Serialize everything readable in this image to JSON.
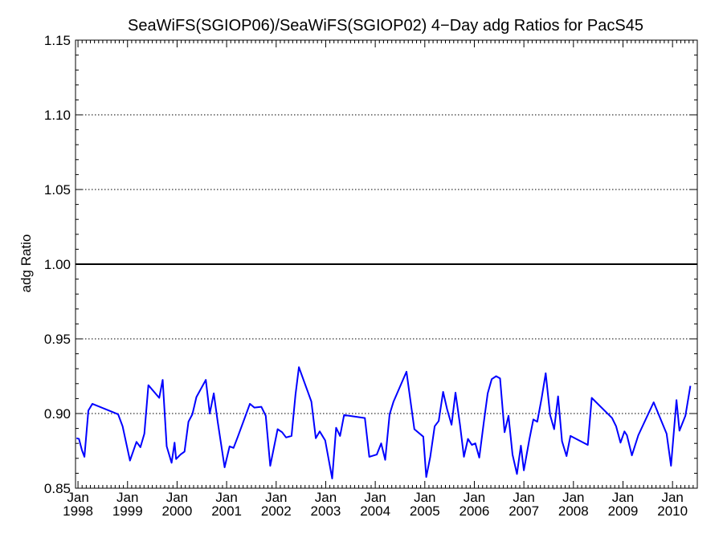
{
  "chart_data": {
    "type": "line",
    "title": "SeaWiFS(SGIOP06)/SeaWiFS(SGIOP02) 4−Day adg Ratios for PacS45",
    "xlabel": "",
    "ylabel": "adg Ratio",
    "ylim": [
      0.85,
      1.15
    ],
    "xlim": [
      1997.95,
      2010.5
    ],
    "y_ticks": [
      {
        "value": 0.85,
        "label": "0.85"
      },
      {
        "value": 0.9,
        "label": "0.90"
      },
      {
        "value": 0.95,
        "label": "0.95"
      },
      {
        "value": 1.0,
        "label": "1.00"
      },
      {
        "value": 1.05,
        "label": "1.05"
      },
      {
        "value": 1.1,
        "label": "1.10"
      },
      {
        "value": 1.15,
        "label": "1.15"
      }
    ],
    "x_ticks": [
      {
        "value": 1998,
        "month": "Jan",
        "year": "1998"
      },
      {
        "value": 1999,
        "month": "Jan",
        "year": "1999"
      },
      {
        "value": 2000,
        "month": "Jan",
        "year": "2000"
      },
      {
        "value": 2001,
        "month": "Jan",
        "year": "2001"
      },
      {
        "value": 2002,
        "month": "Jan",
        "year": "2002"
      },
      {
        "value": 2003,
        "month": "Jan",
        "year": "2003"
      },
      {
        "value": 2004,
        "month": "Jan",
        "year": "2004"
      },
      {
        "value": 2005,
        "month": "Jan",
        "year": "2005"
      },
      {
        "value": 2006,
        "month": "Jan",
        "year": "2006"
      },
      {
        "value": 2007,
        "month": "Jan",
        "year": "2007"
      },
      {
        "value": 2008,
        "month": "Jan",
        "year": "2008"
      },
      {
        "value": 2009,
        "month": "Jan",
        "year": "2009"
      },
      {
        "value": 2010,
        "month": "Jan",
        "year": "2010"
      }
    ],
    "grid": "horizontal dotted at major y ticks",
    "reference_line": 1.0,
    "series": [
      {
        "color": "#0000ff",
        "points": [
          [
            1997.97,
            0.8835
          ],
          [
            1998.02,
            0.883
          ],
          [
            1998.08,
            0.8755
          ],
          [
            1998.13,
            0.871
          ],
          [
            1998.21,
            0.902
          ],
          [
            1998.29,
            0.9065
          ],
          [
            1998.81,
            0.8995
          ],
          [
            1998.9,
            0.8915
          ],
          [
            1999.05,
            0.8685
          ],
          [
            1999.18,
            0.881
          ],
          [
            1999.26,
            0.8775
          ],
          [
            1999.34,
            0.8865
          ],
          [
            1999.42,
            0.919
          ],
          [
            1999.64,
            0.9105
          ],
          [
            1999.71,
            0.9225
          ],
          [
            1999.79,
            0.878
          ],
          [
            1999.89,
            0.867
          ],
          [
            1999.95,
            0.8805
          ],
          [
            1999.98,
            0.8695
          ],
          [
            2000.07,
            0.8725
          ],
          [
            2000.15,
            0.8745
          ],
          [
            2000.23,
            0.8945
          ],
          [
            2000.31,
            0.8995
          ],
          [
            2000.39,
            0.911
          ],
          [
            2000.58,
            0.9225
          ],
          [
            2000.66,
            0.9
          ],
          [
            2000.74,
            0.9135
          ],
          [
            2000.82,
            0.8945
          ],
          [
            2000.96,
            0.864
          ],
          [
            2001.06,
            0.878
          ],
          [
            2001.14,
            0.877
          ],
          [
            2001.22,
            0.884
          ],
          [
            2001.47,
            0.9065
          ],
          [
            2001.56,
            0.904
          ],
          [
            2001.7,
            0.9045
          ],
          [
            2001.79,
            0.8985
          ],
          [
            2001.88,
            0.865
          ],
          [
            2002.03,
            0.8895
          ],
          [
            2002.12,
            0.8875
          ],
          [
            2002.2,
            0.884
          ],
          [
            2002.31,
            0.885
          ],
          [
            2002.39,
            0.9125
          ],
          [
            2002.46,
            0.931
          ],
          [
            2002.71,
            0.908
          ],
          [
            2002.8,
            0.8835
          ],
          [
            2002.88,
            0.888
          ],
          [
            2002.99,
            0.882
          ],
          [
            2003.13,
            0.8565
          ],
          [
            2003.21,
            0.8905
          ],
          [
            2003.29,
            0.885
          ],
          [
            2003.37,
            0.899
          ],
          [
            2003.79,
            0.897
          ],
          [
            2003.88,
            0.871
          ],
          [
            2004.03,
            0.8725
          ],
          [
            2004.12,
            0.88
          ],
          [
            2004.2,
            0.869
          ],
          [
            2004.29,
            0.8995
          ],
          [
            2004.37,
            0.908
          ],
          [
            2004.63,
            0.928
          ],
          [
            2004.79,
            0.8895
          ],
          [
            2004.97,
            0.8845
          ],
          [
            2005.03,
            0.8575
          ],
          [
            2005.11,
            0.871
          ],
          [
            2005.2,
            0.8915
          ],
          [
            2005.28,
            0.895
          ],
          [
            2005.37,
            0.9145
          ],
          [
            2005.45,
            0.903
          ],
          [
            2005.54,
            0.8925
          ],
          [
            2005.62,
            0.914
          ],
          [
            2005.71,
            0.8925
          ],
          [
            2005.79,
            0.871
          ],
          [
            2005.87,
            0.883
          ],
          [
            2005.95,
            0.879
          ],
          [
            2006.02,
            0.88
          ],
          [
            2006.1,
            0.8705
          ],
          [
            2006.19,
            0.894
          ],
          [
            2006.27,
            0.9135
          ],
          [
            2006.35,
            0.923
          ],
          [
            2006.44,
            0.925
          ],
          [
            2006.52,
            0.9235
          ],
          [
            2006.61,
            0.8875
          ],
          [
            2006.69,
            0.8985
          ],
          [
            2006.77,
            0.8725
          ],
          [
            2006.86,
            0.8595
          ],
          [
            2006.94,
            0.8785
          ],
          [
            2007.0,
            0.862
          ],
          [
            2007.11,
            0.8825
          ],
          [
            2007.19,
            0.896
          ],
          [
            2007.27,
            0.8945
          ],
          [
            2007.36,
            0.9105
          ],
          [
            2007.44,
            0.927
          ],
          [
            2007.53,
            0.899
          ],
          [
            2007.61,
            0.8895
          ],
          [
            2007.69,
            0.9115
          ],
          [
            2007.77,
            0.8815
          ],
          [
            2007.86,
            0.8715
          ],
          [
            2007.94,
            0.885
          ],
          [
            2008.29,
            0.879
          ],
          [
            2008.37,
            0.9105
          ],
          [
            2008.78,
            0.897
          ],
          [
            2008.86,
            0.8915
          ],
          [
            2008.95,
            0.8805
          ],
          [
            2009.03,
            0.888
          ],
          [
            2009.08,
            0.8855
          ],
          [
            2009.18,
            0.872
          ],
          [
            2009.31,
            0.8855
          ],
          [
            2009.62,
            0.9075
          ],
          [
            2009.88,
            0.8865
          ],
          [
            2009.97,
            0.865
          ],
          [
            2010.08,
            0.909
          ],
          [
            2010.14,
            0.8885
          ],
          [
            2010.26,
            0.8985
          ],
          [
            2010.36,
            0.9185
          ]
        ]
      }
    ]
  }
}
